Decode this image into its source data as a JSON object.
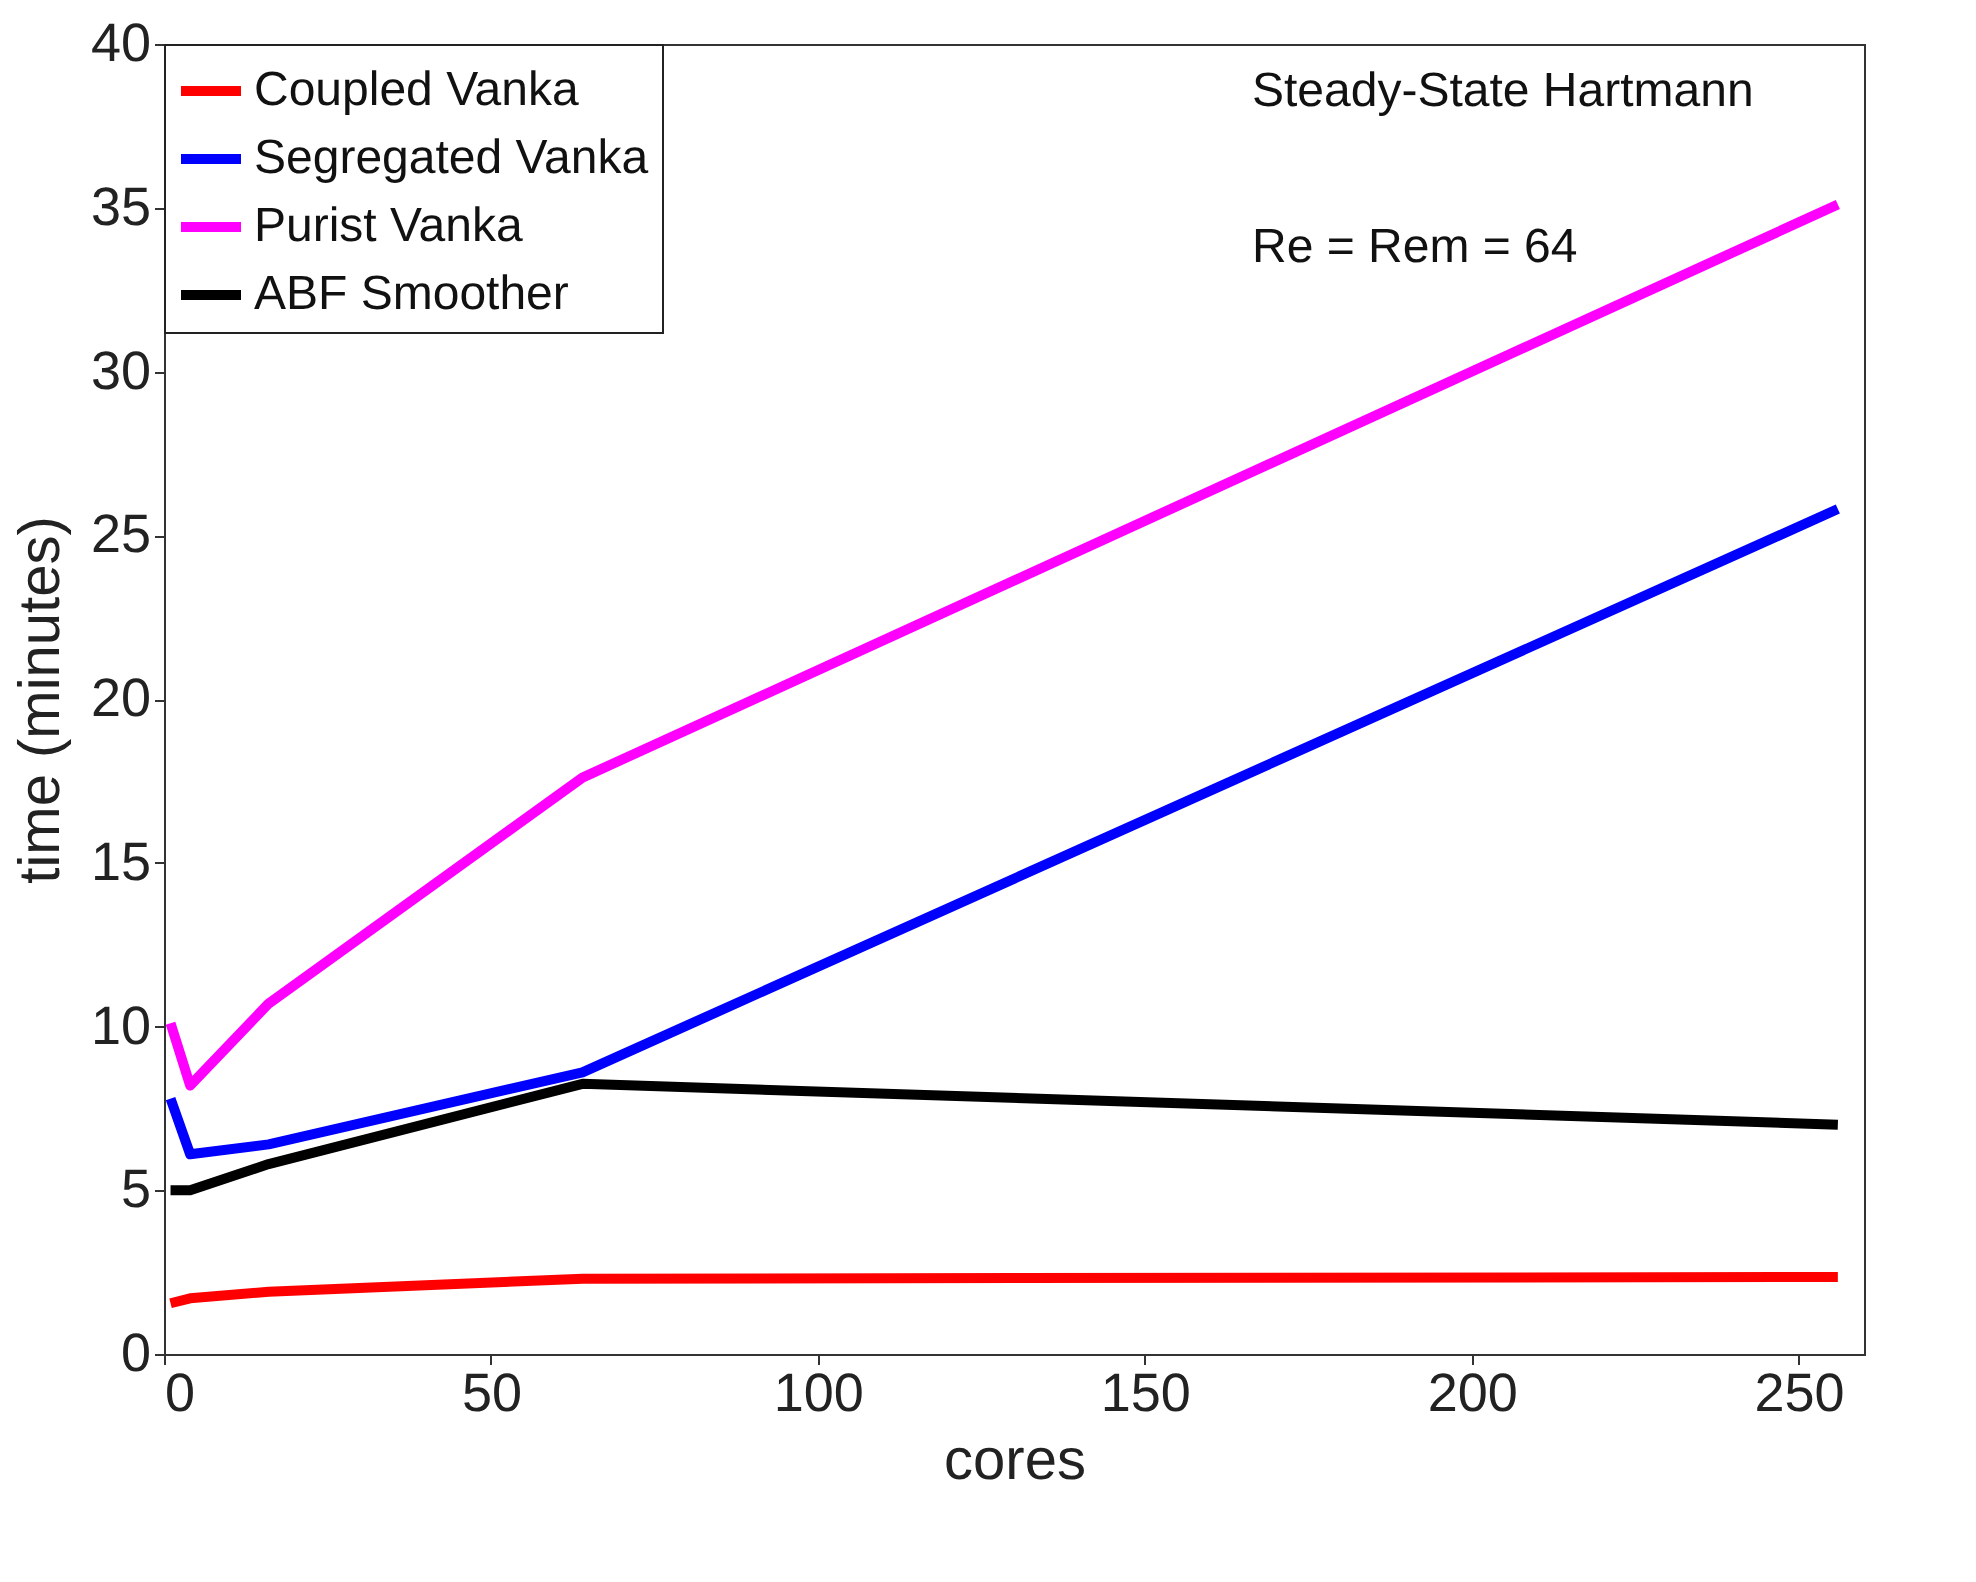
{
  "chart_data": {
    "type": "line",
    "xlabel": "cores",
    "ylabel": "time (minutes)",
    "x": [
      1,
      4,
      16,
      64,
      256
    ],
    "series": [
      {
        "name": "Coupled Vanka",
        "color": "#ff0000",
        "values": [
          1.55,
          1.7,
          1.9,
          2.3,
          2.35
        ]
      },
      {
        "name": "Segregated Vanka",
        "color": "#0000ff",
        "values": [
          7.8,
          6.1,
          6.4,
          8.6,
          25.8
        ]
      },
      {
        "name": "Purist Vanka",
        "color": "#ff00ff",
        "values": [
          10.1,
          8.2,
          10.7,
          17.6,
          35.1
        ]
      },
      {
        "name": "ABF Smoother",
        "color": "#000000",
        "values": [
          5.0,
          5.0,
          5.8,
          8.25,
          7.0
        ]
      }
    ],
    "xlim": [
      0,
      260
    ],
    "xticks": [
      0,
      50,
      100,
      150,
      200,
      250
    ],
    "ylim": [
      0,
      40
    ],
    "yticks": [
      0,
      5,
      10,
      15,
      20,
      25,
      30,
      35,
      40
    ],
    "grid": false,
    "legend": "top left",
    "line_style": "solid",
    "marker": "none",
    "annotations": [
      "Steady-State Hartmann",
      "Re = Rem = 64"
    ]
  }
}
